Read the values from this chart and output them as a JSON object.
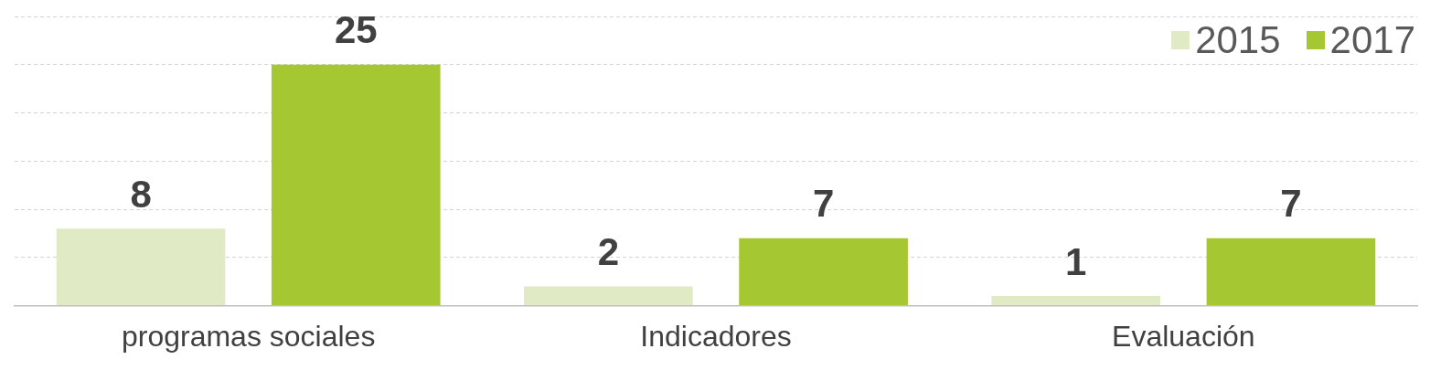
{
  "chart_data": {
    "type": "bar",
    "categories": [
      "programas sociales",
      "Indicadores",
      "Evaluación"
    ],
    "series": [
      {
        "name": "2015",
        "color": "#e0eac4",
        "values": [
          8,
          2,
          1
        ]
      },
      {
        "name": "2017",
        "color": "#a5c832",
        "values": [
          25,
          7,
          7
        ]
      }
    ],
    "ylim": [
      0,
      30
    ],
    "yticks": [
      {
        "value": 0,
        "label": null
      },
      {
        "value": 5,
        "label": null
      },
      {
        "value": 10,
        "label": null
      },
      {
        "value": 15,
        "label": null
      },
      {
        "value": 20,
        "label": null
      },
      {
        "value": 25,
        "label": null
      },
      {
        "value": 30,
        "label": null
      }
    ],
    "grid": "y",
    "tick_labels": "x",
    "legend": "top right",
    "data_labels": true
  }
}
